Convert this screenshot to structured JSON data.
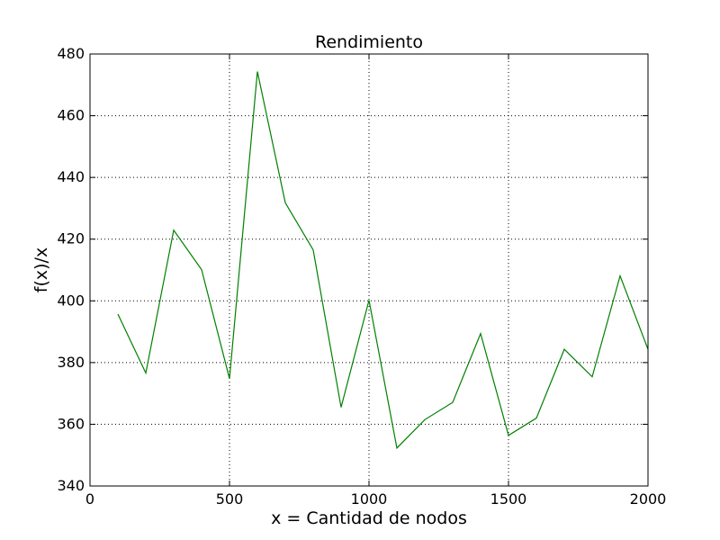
{
  "chart_data": {
    "type": "line",
    "title": "Rendimiento",
    "xlabel": "x = Cantidad de nodos",
    "ylabel": "f(x)/x",
    "xlim": [
      0,
      2000
    ],
    "ylim": [
      340,
      480
    ],
    "xticks": [
      0,
      500,
      1000,
      1500,
      2000
    ],
    "yticks": [
      340,
      360,
      380,
      400,
      420,
      440,
      460,
      480
    ],
    "grid": true,
    "line_color": "#008000",
    "x": [
      100,
      200,
      300,
      400,
      500,
      600,
      700,
      800,
      900,
      1000,
      1100,
      1200,
      1300,
      1400,
      1500,
      1600,
      1700,
      1800,
      1900,
      2000
    ],
    "y": [
      395.7,
      376.6,
      422.9,
      410.1,
      374.8,
      474.3,
      431.8,
      416.5,
      365.5,
      400.2,
      352.3,
      361.5,
      367.1,
      389.4,
      356.4,
      362.0,
      384.3,
      375.4,
      408.1,
      384.3
    ]
  }
}
